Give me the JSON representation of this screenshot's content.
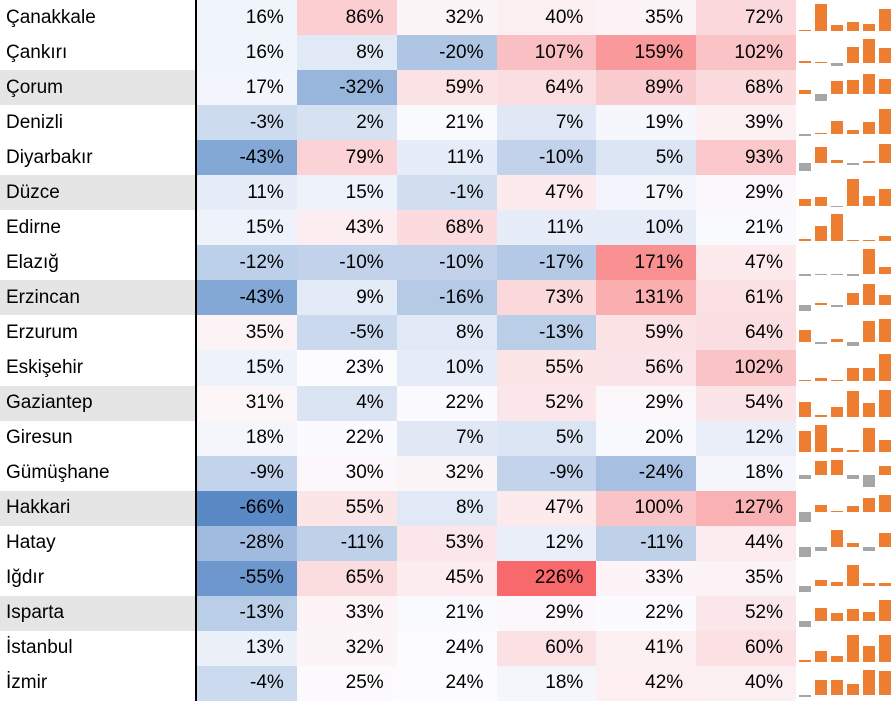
{
  "chart_data": {
    "type": "heatmap",
    "title": "",
    "xlabel": "",
    "ylabel": "",
    "value_suffix": "%",
    "num_columns": 6,
    "rows": [
      {
        "city": "Çanakkale",
        "values": [
          16,
          86,
          32,
          40,
          35,
          72
        ]
      },
      {
        "city": "Çankırı",
        "values": [
          16,
          8,
          -20,
          107,
          159,
          102
        ]
      },
      {
        "city": "Çorum",
        "values": [
          17,
          -32,
          59,
          64,
          89,
          68
        ]
      },
      {
        "city": "Denizli",
        "values": [
          -3,
          2,
          21,
          7,
          19,
          39
        ]
      },
      {
        "city": "Diyarbakır",
        "values": [
          -43,
          79,
          11,
          -10,
          5,
          93
        ]
      },
      {
        "city": "Düzce",
        "values": [
          11,
          15,
          -1,
          47,
          17,
          29
        ]
      },
      {
        "city": "Edirne",
        "values": [
          15,
          43,
          68,
          11,
          10,
          21
        ]
      },
      {
        "city": "Elazığ",
        "values": [
          -12,
          -10,
          -10,
          -17,
          171,
          47
        ]
      },
      {
        "city": "Erzincan",
        "values": [
          -43,
          9,
          -16,
          73,
          131,
          61
        ]
      },
      {
        "city": "Erzurum",
        "values": [
          35,
          -5,
          8,
          -13,
          59,
          64
        ]
      },
      {
        "city": "Eskişehir",
        "values": [
          15,
          23,
          10,
          55,
          56,
          102
        ]
      },
      {
        "city": "Gaziantep",
        "values": [
          31,
          4,
          22,
          52,
          29,
          54
        ]
      },
      {
        "city": "Giresun",
        "values": [
          18,
          22,
          7,
          5,
          20,
          12
        ]
      },
      {
        "city": "Gümüşhane",
        "values": [
          -9,
          30,
          32,
          -9,
          -24,
          18
        ]
      },
      {
        "city": "Hakkari",
        "values": [
          -66,
          55,
          8,
          47,
          100,
          127
        ]
      },
      {
        "city": "Hatay",
        "values": [
          -28,
          -11,
          53,
          12,
          -11,
          44
        ]
      },
      {
        "city": "Iğdır",
        "values": [
          -55,
          65,
          45,
          226,
          33,
          35
        ]
      },
      {
        "city": "Isparta",
        "values": [
          -13,
          33,
          21,
          29,
          22,
          52
        ]
      },
      {
        "city": "İstanbul",
        "values": [
          13,
          32,
          24,
          60,
          41,
          60
        ]
      },
      {
        "city": "İzmir",
        "values": [
          -4,
          25,
          24,
          18,
          42,
          40
        ]
      }
    ],
    "striped_row_indices": [
      2,
      5,
      8,
      11,
      14,
      17
    ],
    "color_scale": {
      "min_color": "#5A8AC6",
      "mid_color": "#FCFCFF",
      "max_color": "#F8696B",
      "mid_at": "50th-percentile"
    },
    "sparkline": {
      "type": "column",
      "positive_color": "#ED7D31",
      "negative_color": "#A6A6A6",
      "axis": "auto-per-row-min-to-max"
    },
    "stripe_color": "#E5E5E5",
    "separator_color": "#000000"
  }
}
